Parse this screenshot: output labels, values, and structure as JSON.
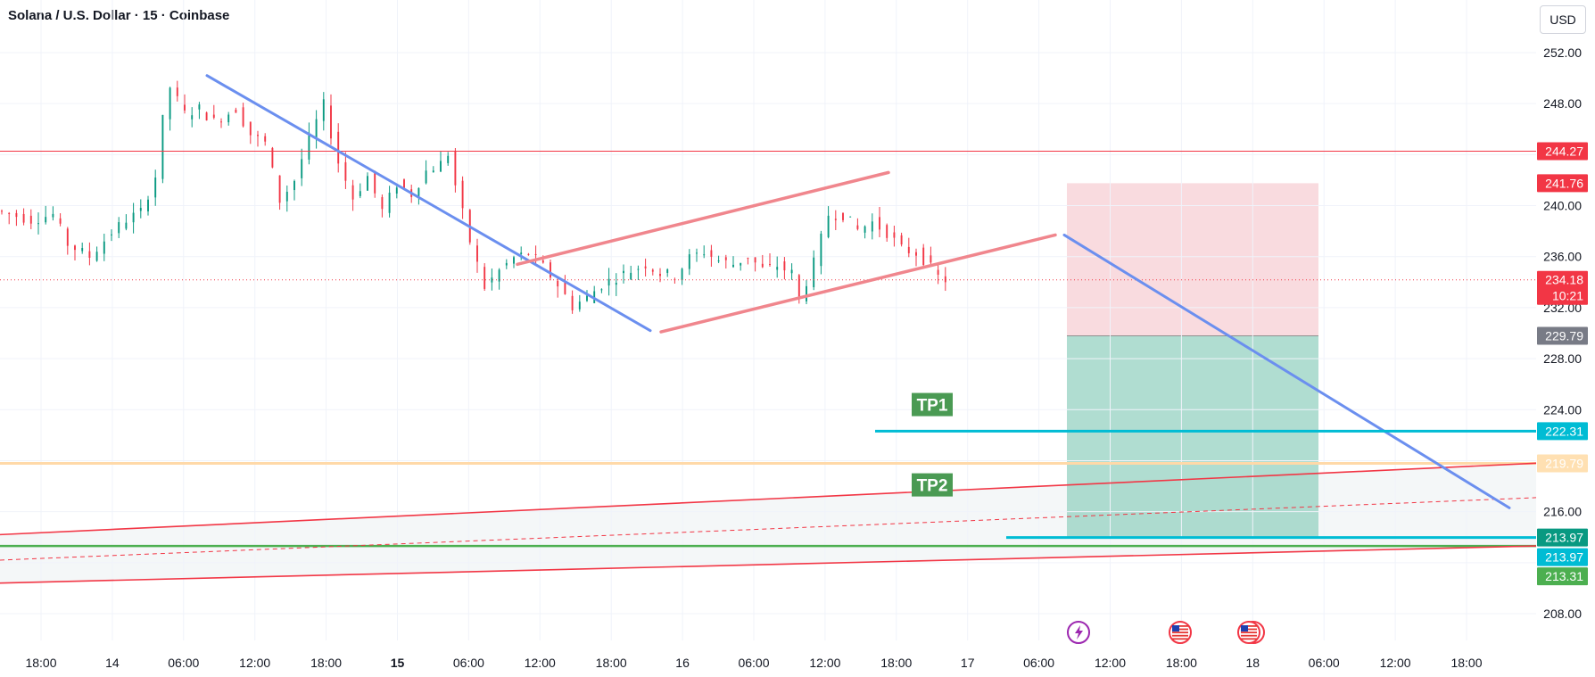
{
  "header": {
    "title": "Solana / U.S. Dollar · 15 · Coinbase",
    "currency": "USD"
  },
  "chart_data": {
    "type": "candlestick",
    "title": "Solana / U.S. Dollar · 15 · Coinbase",
    "ylim": [
      205.5,
      253.8
    ],
    "y_ticks": [
      208,
      212,
      216,
      220,
      224,
      228,
      232,
      236,
      240,
      244,
      248,
      252
    ],
    "y_ticks_shown": [
      "208.00",
      "216.00",
      "224.00",
      "228.00",
      "232.00",
      "236.00",
      "240.00",
      "248.00",
      "252.00"
    ],
    "x_ticks": [
      {
        "label": "18:00",
        "bold": false
      },
      {
        "label": "14",
        "bold": false
      },
      {
        "label": "06:00",
        "bold": false
      },
      {
        "label": "12:00",
        "bold": false
      },
      {
        "label": "18:00",
        "bold": false
      },
      {
        "label": "15",
        "bold": true
      },
      {
        "label": "06:00",
        "bold": false
      },
      {
        "label": "12:00",
        "bold": false
      },
      {
        "label": "18:00",
        "bold": false
      },
      {
        "label": "16",
        "bold": false
      },
      {
        "label": "06:00",
        "bold": false
      },
      {
        "label": "12:00",
        "bold": false
      },
      {
        "label": "18:00",
        "bold": false
      },
      {
        "label": "17",
        "bold": false
      },
      {
        "label": "06:00",
        "bold": false
      },
      {
        "label": "12:00",
        "bold": false
      },
      {
        "label": "18:00",
        "bold": false
      },
      {
        "label": "18",
        "bold": false
      },
      {
        "label": "06:00",
        "bold": false
      },
      {
        "label": "12:00",
        "bold": false
      },
      {
        "label": "18:00",
        "bold": false
      }
    ],
    "price_path": [
      [
        0,
        239.6
      ],
      [
        3,
        239.2
      ],
      [
        5,
        238.9
      ],
      [
        8,
        239.3
      ],
      [
        10,
        237.0
      ],
      [
        13,
        236.0
      ],
      [
        16,
        237.9
      ],
      [
        18,
        238.9
      ],
      [
        20,
        239.5
      ],
      [
        22,
        242.3
      ],
      [
        23,
        246.7
      ],
      [
        24,
        249.3
      ],
      [
        26,
        247.2
      ],
      [
        28,
        247.6
      ],
      [
        30,
        246.6
      ],
      [
        33,
        247.6
      ],
      [
        35,
        245.6
      ],
      [
        37,
        244.9
      ],
      [
        39,
        240.4
      ],
      [
        41,
        242.0
      ],
      [
        43,
        245.3
      ],
      [
        45,
        247.9
      ],
      [
        47,
        243.4
      ],
      [
        49,
        240.6
      ],
      [
        51,
        242.3
      ],
      [
        53,
        239.6
      ],
      [
        55,
        241.7
      ],
      [
        57,
        240.9
      ],
      [
        59,
        242.7
      ],
      [
        61,
        243.3
      ],
      [
        62,
        244.1
      ],
      [
        63,
        241.6
      ],
      [
        65,
        237.2
      ],
      [
        67,
        233.6
      ],
      [
        69,
        234.9
      ],
      [
        71,
        235.9
      ],
      [
        73,
        236.3
      ],
      [
        75,
        235.2
      ],
      [
        77,
        233.8
      ],
      [
        79,
        232.1
      ],
      [
        81,
        232.8
      ],
      [
        83,
        233.8
      ],
      [
        85,
        234.4
      ],
      [
        87,
        234.9
      ],
      [
        89,
        235.4
      ],
      [
        91,
        234.7
      ],
      [
        93,
        234.5
      ],
      [
        95,
        235.9
      ],
      [
        97,
        236.4
      ],
      [
        99,
        235.7
      ],
      [
        101,
        235.4
      ],
      [
        103,
        236.0
      ],
      [
        105,
        235.0
      ],
      [
        107,
        235.3
      ],
      [
        109,
        234.7
      ],
      [
        110,
        232.6
      ],
      [
        112,
        235.5
      ],
      [
        114,
        239.3
      ],
      [
        116,
        239.3
      ],
      [
        118,
        238.1
      ],
      [
        120,
        238.7
      ],
      [
        122,
        237.9
      ],
      [
        124,
        236.6
      ],
      [
        126,
        236.3
      ],
      [
        127,
        235.8
      ],
      [
        129,
        234.4
      ],
      [
        130,
        234.18
      ]
    ],
    "price_levels": [
      {
        "price": 244.27,
        "label": "244.27",
        "color": "#f23645",
        "style": "solid"
      },
      {
        "price": 241.76,
        "label": "241.76",
        "color": "#f23645",
        "style": "none"
      },
      {
        "price": 234.18,
        "label": "234.18",
        "countdown": "10:21",
        "color": "#f23645",
        "style": "dotted"
      },
      {
        "price": 229.79,
        "label": "229.79",
        "color": "#787b86",
        "style": "none"
      },
      {
        "price": 222.31,
        "label": "222.31",
        "color": "#00bcd4",
        "style": "none"
      },
      {
        "price": 219.79,
        "label": "219.79",
        "color": "#ffe0b2",
        "style": "solid"
      },
      {
        "price": 213.97,
        "label": "213.97",
        "color": "#089981",
        "style": "none"
      },
      {
        "price": 213.97,
        "label": "213.97",
        "color": "#00bcd4",
        "style": "none"
      },
      {
        "price": 213.31,
        "label": "213.31",
        "color": "#4caf50",
        "style": "solid"
      }
    ],
    "annotations": {
      "tp1": "TP1",
      "tp2": "TP2",
      "short_position": {
        "entry": 229.79,
        "stop": 241.76,
        "target": 213.97
      }
    },
    "event_icons": [
      "lightning-event",
      "us-flag-event",
      "us-flag-event-multi"
    ],
    "colors": {
      "up": "#089981",
      "down": "#f23645",
      "trend_blue": "#6b8fef",
      "channel_pink": "#f0868d",
      "tp_line": "#00bcd4",
      "tp_badge": "#4a9a53"
    }
  }
}
